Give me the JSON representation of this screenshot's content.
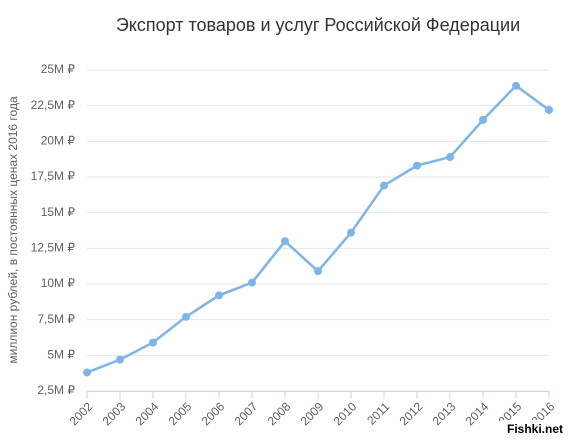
{
  "chart_data": {
    "type": "line",
    "title": "Экспорт товаров и услуг Российской Федерации",
    "y_label": "миллион рублей, в постоянных ценах 2016 года",
    "watermark": "Fishki.net",
    "categories": [
      "2002",
      "2003",
      "2004",
      "2005",
      "2006",
      "2007",
      "2008",
      "2009",
      "2010",
      "2011",
      "2012",
      "2013",
      "2014",
      "2015",
      "2016"
    ],
    "series": [
      {
        "name": "Экспорт",
        "color": "#7cb5ec",
        "values": [
          3.8,
          4.7,
          5.9,
          7.7,
          9.2,
          10.1,
          13.0,
          10.9,
          13.6,
          16.9,
          18.3,
          18.9,
          21.5,
          23.9,
          22.2
        ]
      }
    ],
    "ylim": [
      2.5,
      25
    ],
    "yticks": [
      {
        "value": 2.5,
        "label": "2,5M ₽"
      },
      {
        "value": 5,
        "label": "5M ₽"
      },
      {
        "value": 7.5,
        "label": "7,5M ₽"
      },
      {
        "value": 10,
        "label": "10M ₽"
      },
      {
        "value": 12.5,
        "label": "12,5M ₽"
      },
      {
        "value": 15,
        "label": "15M ₽"
      },
      {
        "value": 17.5,
        "label": "17,5M ₽"
      },
      {
        "value": 20,
        "label": "20M ₽"
      },
      {
        "value": 22.5,
        "label": "22,5M ₽"
      },
      {
        "value": 25,
        "label": "25M ₽"
      }
    ],
    "grid": true
  }
}
